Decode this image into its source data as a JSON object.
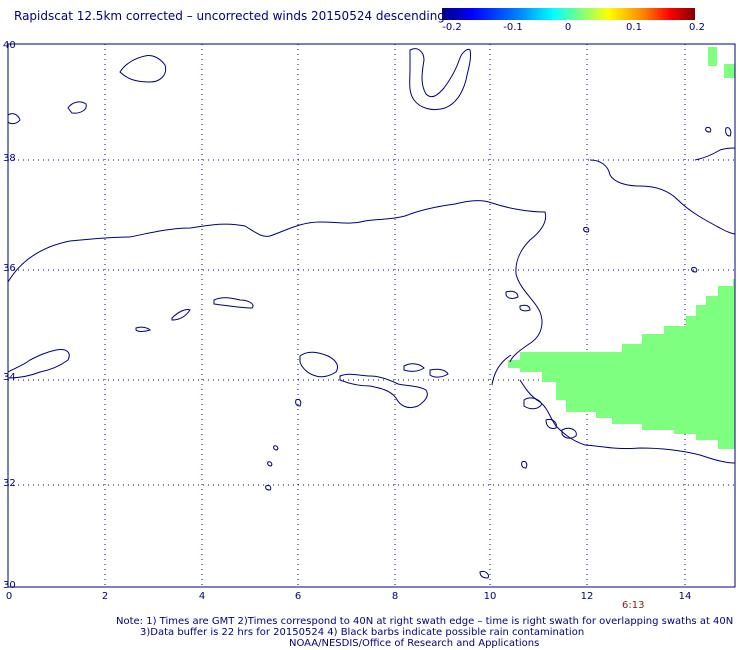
{
  "title": "Rapidscat 12.5km corrected – uncorrected winds 20150524 descending",
  "colorbar": {
    "ticks": [
      "-0.2",
      "-0.1",
      "0",
      "0.1",
      "0.2"
    ],
    "colors": [
      "#00007f",
      "#0000ff",
      "#00ffff",
      "#ffff00",
      "#ff0000",
      "#7f0000"
    ]
  },
  "axes": {
    "y_ticks": [
      "40",
      "38",
      "36",
      "34",
      "32",
      "30"
    ],
    "x_ticks": [
      "0",
      "2",
      "4",
      "6",
      "8",
      "10",
      "12",
      "14"
    ],
    "xlim": [
      0,
      15
    ],
    "ylim": [
      30,
      40
    ]
  },
  "swath_color": "#7fff7f",
  "coast_color": "#000080",
  "time_label": "6:13",
  "notes": [
    "Note: 1) Times are GMT 2)Times correspond to 40N at right swath edge – time is right swath for overlapping swaths at 40N",
    "3)Data buffer is 22 hrs for 20150524 4) Black barbs indicate possible rain contamination",
    "NOAA/NESDIS/Office of Research and Applications"
  ]
}
